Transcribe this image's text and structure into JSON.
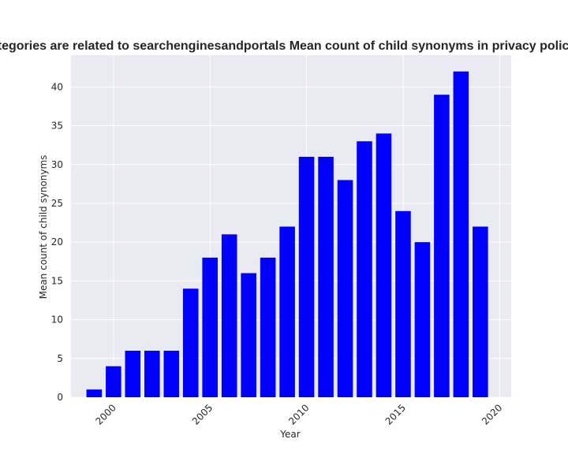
{
  "chart_data": {
    "type": "bar",
    "title": "Categories are related to searchenginesandportals Mean count of child synonyms in privacy policies",
    "xlabel": "Year",
    "ylabel": "Mean count of child synonyms",
    "x": [
      1999,
      2000,
      2001,
      2002,
      2003,
      2004,
      2005,
      2006,
      2007,
      2008,
      2009,
      2010,
      2011,
      2012,
      2013,
      2014,
      2015,
      2016,
      2017,
      2018,
      2019
    ],
    "values": [
      1,
      4,
      6,
      6,
      6,
      14,
      18,
      21,
      16,
      18,
      22,
      31,
      31,
      28,
      33,
      34,
      24,
      20,
      39,
      42,
      22
    ],
    "xlim": [
      1997.8,
      2020.6
    ],
    "ylim": [
      0,
      44.1
    ],
    "xticks": [
      2000,
      2005,
      2010,
      2015,
      2020
    ],
    "xtick_labels": [
      "2000",
      "2005",
      "2010",
      "2015",
      "2020"
    ],
    "yticks": [
      0,
      5,
      10,
      15,
      20,
      25,
      30,
      35,
      40
    ],
    "ytick_labels": [
      "0",
      "5",
      "10",
      "15",
      "20",
      "25",
      "30",
      "35",
      "40"
    ],
    "grid": true,
    "legend": false,
    "colors": {
      "bar": "#0000ff",
      "background": "#eaeaf2",
      "grid": "#ffffff"
    }
  }
}
